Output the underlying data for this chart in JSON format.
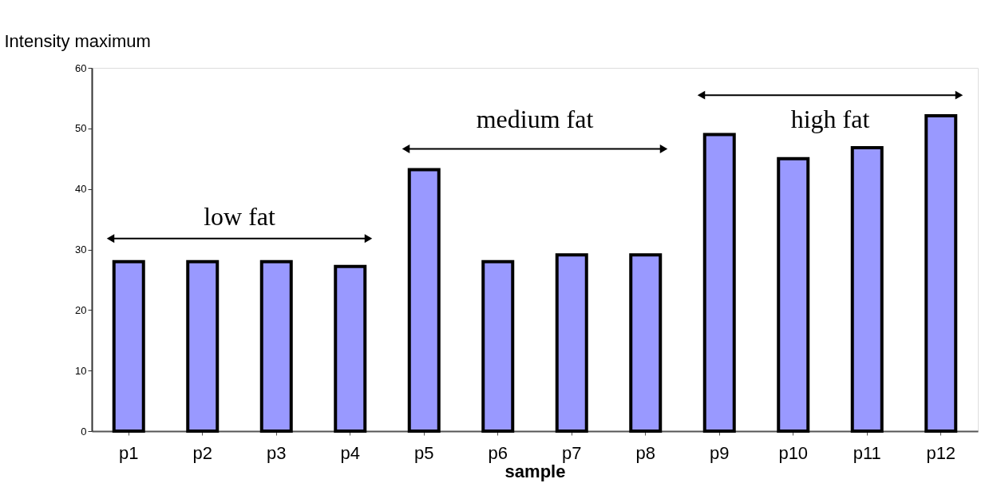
{
  "chart_data": {
    "type": "bar",
    "categories": [
      "p1",
      "p2",
      "p3",
      "p4",
      "p5",
      "p6",
      "p7",
      "p8",
      "p9",
      "p10",
      "p11",
      "p12"
    ],
    "values": [
      28,
      28,
      28,
      27.2,
      43.2,
      28,
      29.1,
      29.1,
      49,
      45,
      46.8,
      52.1
    ],
    "color": "#9999ff",
    "xlabel": "sample",
    "ylabel": "Intensity maximum",
    "ylim": [
      0,
      60
    ],
    "yticks": [
      0,
      10,
      20,
      30,
      40,
      50,
      60
    ],
    "grid": false,
    "annotations": [
      "low fat",
      "medium fat",
      "high fat"
    ]
  }
}
